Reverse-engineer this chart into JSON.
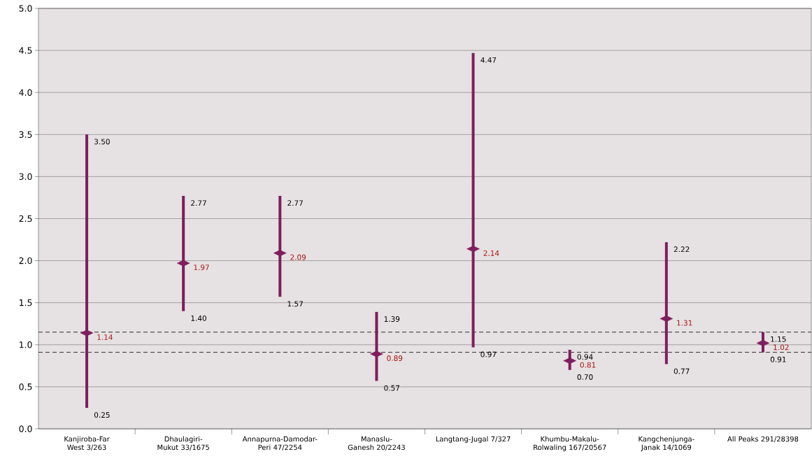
{
  "chart_data": {
    "type": "scatter",
    "categories": [
      "Kanjiroba-Far West 3/263",
      "Dhaulagiri-Mukut 33/1675",
      "Annapurna-Damodar-Peri 47/2254",
      "Manaslu-Ganesh 20/2243",
      "Langtang-Jugal 7/327",
      "Khumbu-Makalu-Rolwaling 167/20567",
      "Kangchenjunga-Janak 14/1069",
      "All Peaks 291/28398"
    ],
    "series": [
      {
        "color": "#7f1d5f",
        "values": [
          1.14,
          1.97,
          2.09,
          0.89,
          2.14,
          0.81,
          1.31,
          1.02
        ],
        "errors": [
          [
            0.25,
            3.5
          ],
          [
            1.4,
            2.77
          ],
          [
            1.57,
            2.77
          ],
          [
            0.57,
            1.39
          ],
          [
            0.97,
            4.47
          ],
          [
            0.7,
            0.94
          ],
          [
            0.77,
            2.22
          ],
          [
            0.91,
            1.15
          ]
        ]
      }
    ],
    "data_labels": true,
    "annotations": [
      {
        "text": "3.50",
        "x": "Kanjiroba-Far West 3/263",
        "y": 3.5
      },
      {
        "text": "0.25",
        "x": "Kanjiroba-Far West 3/263",
        "y": 0.25
      },
      {
        "text": "2.77",
        "x": "Dhaulagiri-Mukut 33/1675",
        "y": 2.77
      },
      {
        "text": "1.40",
        "x": "Dhaulagiri-Mukut 33/1675",
        "y": 1.4
      },
      {
        "text": "2.77",
        "x": "Annapurna-Damodar-Peri 47/2254",
        "y": 2.77
      },
      {
        "text": "1.57",
        "x": "Annapurna-Damodar-Peri 47/2254",
        "y": 1.57
      },
      {
        "text": "1.39",
        "x": "Manaslu-Ganesh 20/2243",
        "y": 1.39
      },
      {
        "text": "0.57",
        "x": "Manaslu-Ganesh 20/2243",
        "y": 0.57
      },
      {
        "text": "4.47",
        "x": "Langtang-Jugal 7/327",
        "y": 4.47
      },
      {
        "text": "0.97",
        "x": "Langtang-Jugal 7/327",
        "y": 0.97
      },
      {
        "text": "0.94",
        "x": "Khumbu-Makalu-Rolwaling 167/20567",
        "y": 0.94
      },
      {
        "text": "0.70",
        "x": "Khumbu-Makalu-Rolwaling 167/20567",
        "y": 0.7
      },
      {
        "text": "2.22",
        "x": "Kangchenjunga-Janak 14/1069",
        "y": 2.22
      },
      {
        "text": "0.77",
        "x": "Kangchenjunga-Janak 14/1069",
        "y": 0.77
      },
      {
        "text": "1.15",
        "x": "All Peaks 291/28398",
        "y": 1.15
      },
      {
        "text": "0.91",
        "x": "All Peaks 291/28398",
        "y": 0.91
      }
    ],
    "ylim": [
      0,
      5
    ],
    "yticks": [
      {
        "value": 0,
        "label": "0.0"
      },
      {
        "value": 0.5,
        "label": "0.5"
      },
      {
        "value": 1,
        "label": "1.0"
      },
      {
        "value": 1.5,
        "label": "1.5"
      },
      {
        "value": 2,
        "label": "2.0"
      },
      {
        "value": 2.5,
        "label": "2.5"
      },
      {
        "value": 3,
        "label": "3.0"
      },
      {
        "value": 3.5,
        "label": "3.5"
      },
      {
        "value": 4,
        "label": "4.0"
      },
      {
        "value": 4.5,
        "label": "4.5"
      },
      {
        "value": 5,
        "label": "5.0"
      }
    ],
    "grid": "y",
    "marker": "diamond",
    "ref_lines": [
      {
        "axis": "y",
        "value": 1.15,
        "line_style": "dashed",
        "color": "#000000"
      },
      {
        "axis": "y",
        "value": 0.91,
        "line_style": "dashed",
        "color": "#000000"
      }
    ]
  }
}
